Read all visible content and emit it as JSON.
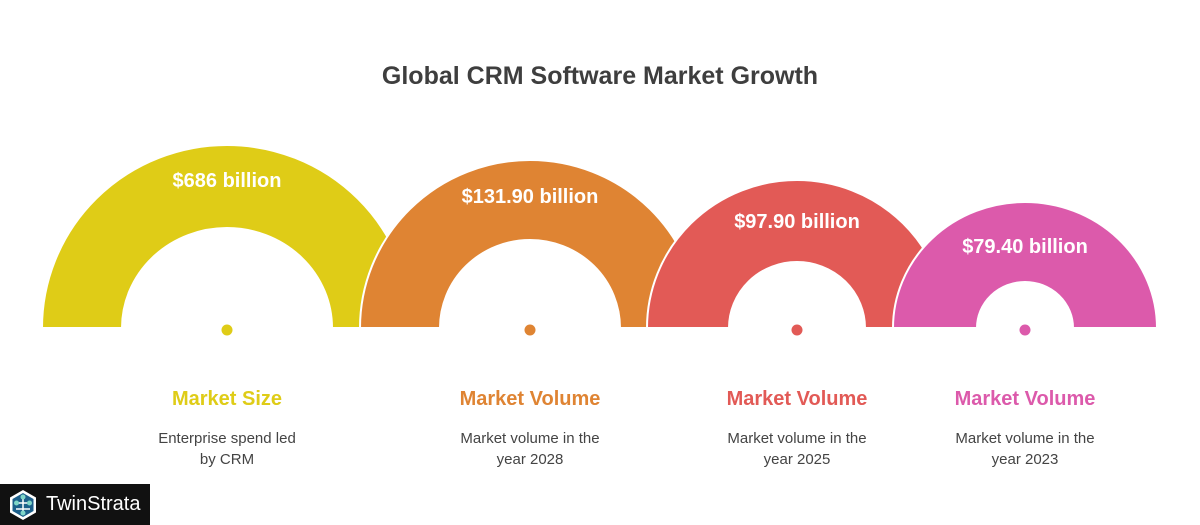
{
  "title": "Global CRM Software Market Growth",
  "items": [
    {
      "value": "$686 billion",
      "label": "Market Size",
      "desc_lines": [
        "Enterprise spend led",
        "by CRM"
      ],
      "color": "#dfcc17"
    },
    {
      "value": "$131.90 billion",
      "label": "Market Volume",
      "desc_lines": [
        "Market volume in the",
        "year 2028"
      ],
      "color": "#df8433"
    },
    {
      "value": "$97.90 billion",
      "label": "Market Volume",
      "desc_lines": [
        "Market volume in the",
        "year 2025"
      ],
      "color": "#e25a56"
    },
    {
      "value": "$79.40 billion",
      "label": "Market Volume",
      "desc_lines": [
        "Market volume in the",
        "year 2023"
      ],
      "color": "#dc5aab"
    }
  ],
  "logo": {
    "text": "TwinStrata",
    "icon": "network-hexagon-icon"
  }
}
